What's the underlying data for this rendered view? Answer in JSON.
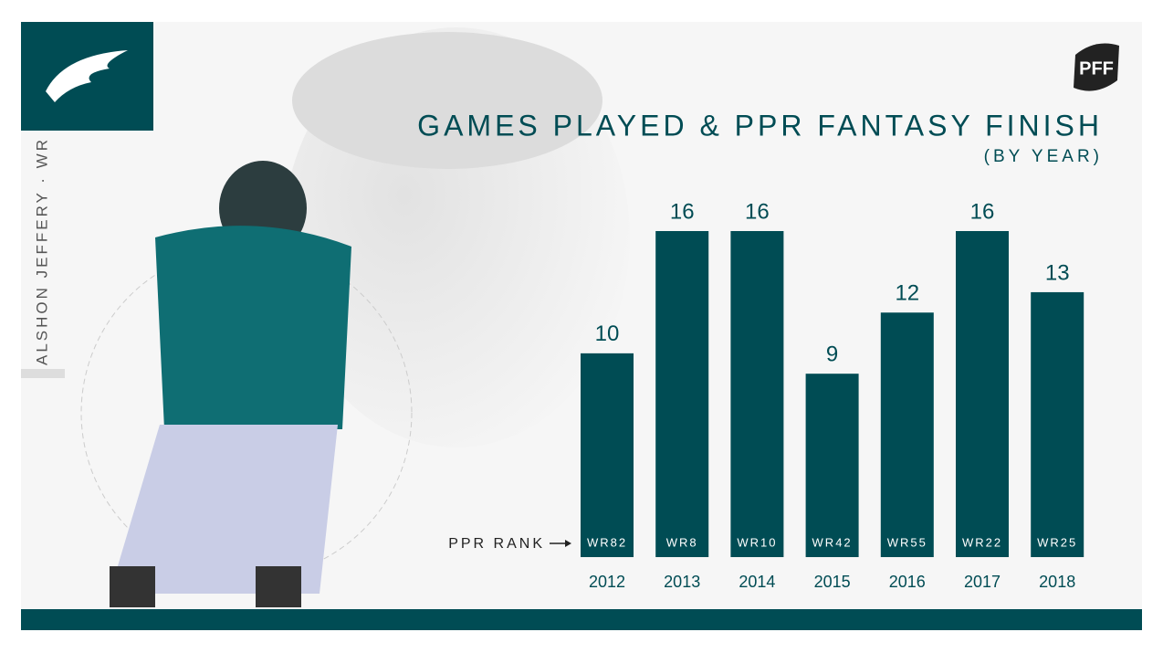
{
  "chart_data": {
    "type": "bar",
    "title": "GAMES PLAYED & PPR FANTASY FINISH",
    "subtitle": "(BY YEAR)",
    "player": "ALSHON JEFFERY · WR",
    "brand": "PFF",
    "rank_label": "PPR RANK",
    "categories": [
      "2012",
      "2013",
      "2014",
      "2015",
      "2016",
      "2017",
      "2018"
    ],
    "values": [
      10,
      16,
      16,
      9,
      12,
      16,
      13
    ],
    "ranks": [
      "WR82",
      "WR8",
      "WR10",
      "WR42",
      "WR55",
      "WR22",
      "WR25"
    ],
    "color": "#004c54"
  }
}
